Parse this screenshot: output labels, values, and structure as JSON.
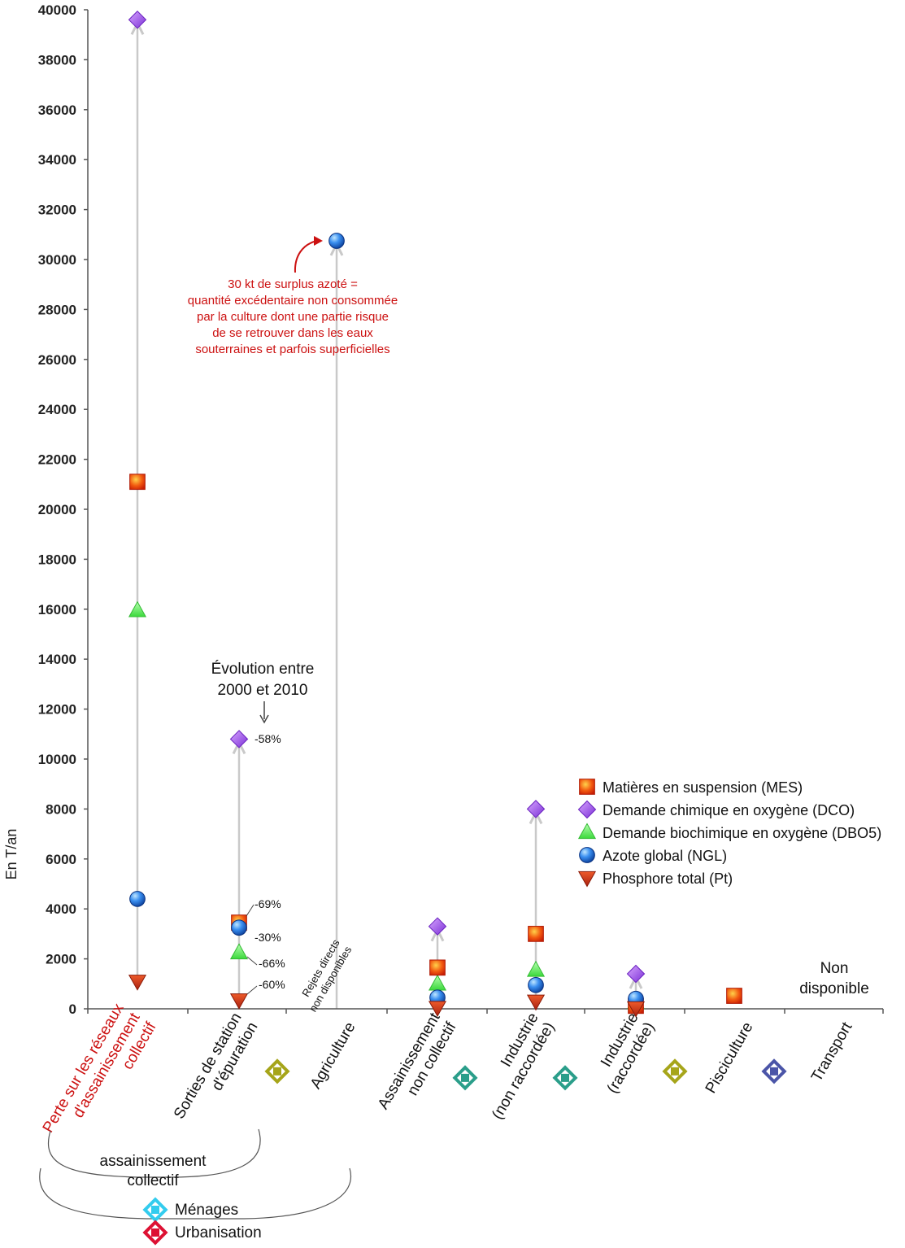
{
  "chart_data": {
    "type": "scatter",
    "ylabel": "En T/an",
    "ylim": [
      0,
      40000
    ],
    "yticks": [
      0,
      2000,
      4000,
      6000,
      8000,
      10000,
      12000,
      14000,
      16000,
      18000,
      20000,
      22000,
      24000,
      26000,
      28000,
      30000,
      32000,
      34000,
      36000,
      38000,
      40000
    ],
    "categories": [
      {
        "label": "Perte sur les réseaux d'assainissement collectif",
        "lines": [
          "Perte sur les réseaux",
          "d'assainissement",
          "collectif"
        ],
        "color": "#cc1111",
        "icon": null
      },
      {
        "label": "Sorties de station d'épuration",
        "lines": [
          "Sorties de station",
          "d'épuration"
        ],
        "color": "#111111",
        "icon": null
      },
      {
        "label": "Agriculture",
        "lines": [
          "Agriculture"
        ],
        "color": "#111111",
        "icon": "agriculture-icon"
      },
      {
        "label": "Assainissement non collectif",
        "lines": [
          "Assainissement",
          "non collectif"
        ],
        "color": "#111111",
        "icon": null
      },
      {
        "label": "Industrie (non raccordée)",
        "lines": [
          "Industrie",
          "(non raccordée)"
        ],
        "color": "#111111",
        "icon": "industry-icon"
      },
      {
        "label": "Industrie (raccordée)",
        "lines": [
          "Industrie",
          "(raccordée)"
        ],
        "color": "#111111",
        "icon": "industry-icon"
      },
      {
        "label": "Pisciculture",
        "lines": [
          "Pisciculture"
        ],
        "color": "#111111",
        "icon": "fish-farming-icon"
      },
      {
        "label": "Transport",
        "lines": [
          "Transport"
        ],
        "color": "#111111",
        "icon": "transport-icon"
      }
    ],
    "series": [
      {
        "name": "Matières en suspension (MES)",
        "marker": "square",
        "color": "#e8420e",
        "values": [
          21100,
          3450,
          null,
          1650,
          3000,
          120,
          520,
          null
        ]
      },
      {
        "name": "Demande chimique en oxygène (DCO)",
        "marker": "diamond",
        "color": "#a24ff0",
        "values": [
          39600,
          10800,
          null,
          3300,
          8000,
          1400,
          null,
          null
        ]
      },
      {
        "name": "Demande biochimique en oxygène (DBO5)",
        "marker": "triangle-up",
        "color": "#5fe65f",
        "values": [
          15950,
          2250,
          null,
          1000,
          1550,
          250,
          null,
          null
        ]
      },
      {
        "name": "Azote global (NGL)",
        "marker": "circle",
        "color": "#2a7de0",
        "values": [
          4400,
          3250,
          30750,
          450,
          950,
          400,
          null,
          null
        ]
      },
      {
        "name": "Phosphore total (Pt)",
        "marker": "triangle-down",
        "color": "#c8321a",
        "values": [
          1100,
          350,
          null,
          50,
          300,
          30,
          null,
          null
        ]
      }
    ],
    "ranges": [
      {
        "category": 0,
        "from": 1100,
        "to": 39600
      },
      {
        "category": 1,
        "from": 350,
        "to": 10800
      },
      {
        "category": 2,
        "from": 0,
        "to": 30750
      },
      {
        "category": 3,
        "from": 50,
        "to": 3300
      },
      {
        "category": 4,
        "from": 300,
        "to": 8000
      },
      {
        "category": 5,
        "from": 30,
        "to": 1400
      }
    ],
    "evolution": {
      "title_lines": [
        "Évolution entre",
        "2000 et 2010"
      ],
      "labels": [
        {
          "series": "DCO",
          "text": "-58%"
        },
        {
          "series": "MES",
          "text": "-69%"
        },
        {
          "series": "NGL",
          "text": "-30%"
        },
        {
          "series": "DBO5",
          "text": "-66%"
        },
        {
          "series": "Pt",
          "text": "-60%"
        }
      ]
    },
    "annotations": {
      "agriculture_note": [
        "30 kt de surplus azoté =",
        "quantité excédentaire non consommée",
        "par la culture dont une partie risque",
        "de se retrouver dans les eaux",
        "souterraines et parfois superficielles"
      ],
      "rejets_note": [
        "Rejets directs",
        "non disponibles"
      ],
      "transport_note": [
        "Non",
        "disponible"
      ]
    },
    "groups": {
      "collectif_lines": [
        "assainissement",
        "collectif"
      ],
      "legend2": [
        {
          "label": "Ménages",
          "icon": "households-icon",
          "color": "#33ccee"
        },
        {
          "label": "Urbanisation",
          "icon": "urbanisation-icon",
          "color": "#dd1133"
        }
      ]
    },
    "legend": "right-middle",
    "grid": false
  }
}
